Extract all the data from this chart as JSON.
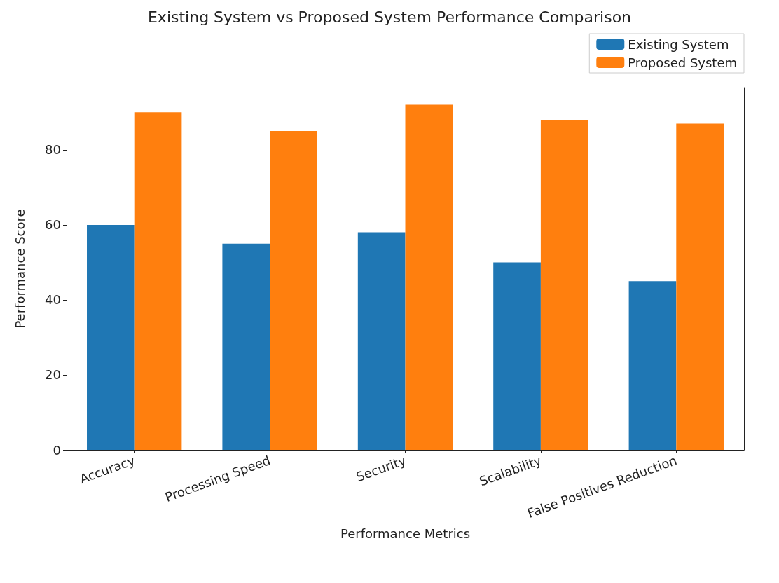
{
  "chart_data": {
    "type": "bar",
    "title": "Existing System vs Proposed System Performance Comparison",
    "xlabel": "Performance Metrics",
    "ylabel": "Performance Score",
    "categories": [
      "Accuracy",
      "Processing Speed",
      "Security",
      "Scalability",
      "False Positives Reduction"
    ],
    "series": [
      {
        "name": "Existing System",
        "color": "#1f77b4",
        "values": [
          60,
          55,
          58,
          50,
          45
        ]
      },
      {
        "name": "Proposed System",
        "color": "#ff7f0e",
        "values": [
          90,
          85,
          92,
          88,
          87
        ]
      }
    ],
    "ylim": [
      0,
      96.6
    ],
    "yticks": [
      0,
      20,
      40,
      60,
      80
    ],
    "grid": false,
    "legend": "top right"
  }
}
